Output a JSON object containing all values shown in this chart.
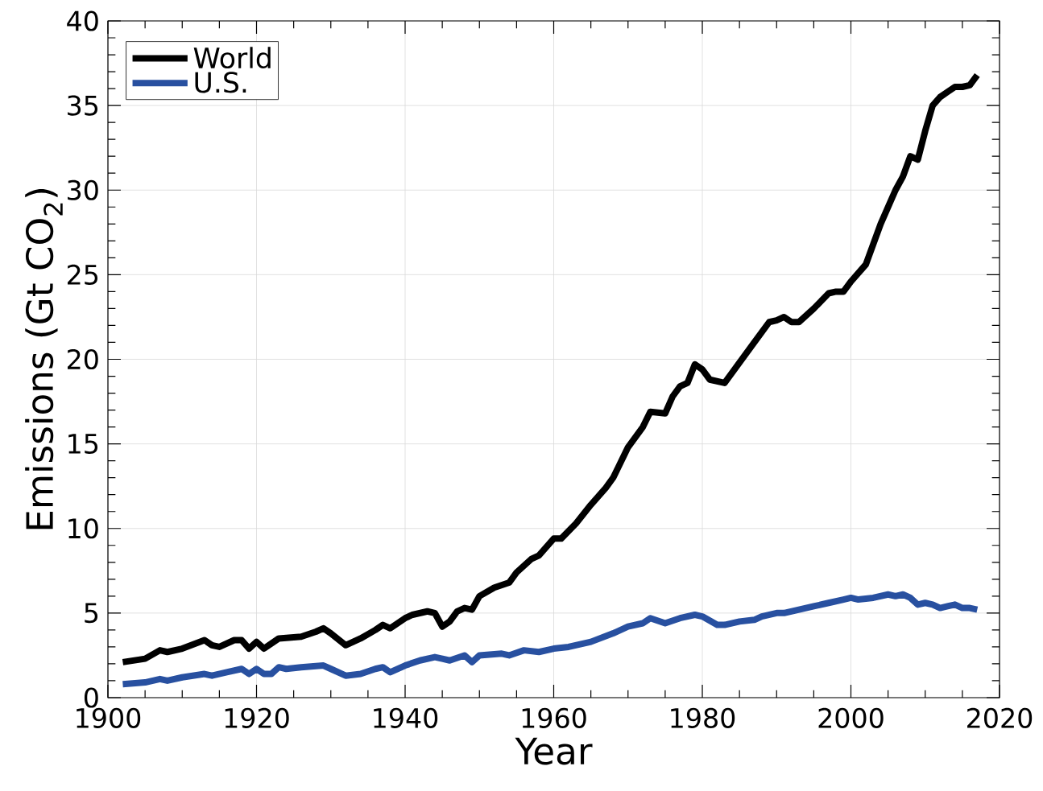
{
  "chart_data": {
    "type": "line",
    "xlabel": "Year",
    "ylabel": "Emissions (Gt CO$_{2}$)",
    "xlim": [
      1900,
      2020
    ],
    "ylim": [
      0,
      40
    ],
    "xticks": [
      1900,
      1920,
      1940,
      1960,
      1980,
      2000,
      2020
    ],
    "yticks": [
      0,
      5,
      10,
      15,
      20,
      25,
      30,
      35,
      40
    ],
    "grid": true,
    "legend": "top left",
    "series": [
      {
        "name": "World",
        "color": "#000000",
        "x": [
          1902,
          1905,
          1907,
          1908,
          1910,
          1913,
          1914,
          1915,
          1917,
          1918,
          1919,
          1920,
          1921,
          1923,
          1926,
          1928,
          1929,
          1930,
          1932,
          1934,
          1936,
          1937,
          1938,
          1940,
          1941,
          1943,
          1944,
          1945,
          1946,
          1947,
          1948,
          1949,
          1950,
          1952,
          1954,
          1955,
          1957,
          1958,
          1960,
          1961,
          1963,
          1965,
          1967,
          1968,
          1970,
          1972,
          1973,
          1975,
          1976,
          1977,
          1978,
          1979,
          1980,
          1981,
          1983,
          1985,
          1987,
          1989,
          1990,
          1991,
          1992,
          1993,
          1995,
          1997,
          1998,
          1999,
          2000,
          2002,
          2003,
          2004,
          2006,
          2007,
          2008,
          2009,
          2010,
          2011,
          2012,
          2013,
          2014,
          2015,
          2016,
          2017
        ],
        "values": [
          2.1,
          2.3,
          2.8,
          2.7,
          2.9,
          3.4,
          3.1,
          3.0,
          3.4,
          3.4,
          2.9,
          3.3,
          2.9,
          3.5,
          3.6,
          3.9,
          4.1,
          3.8,
          3.1,
          3.5,
          4.0,
          4.3,
          4.1,
          4.7,
          4.9,
          5.1,
          5.0,
          4.2,
          4.5,
          5.1,
          5.3,
          5.2,
          6.0,
          6.5,
          6.8,
          7.4,
          8.2,
          8.4,
          9.4,
          9.4,
          10.3,
          11.4,
          12.4,
          13.0,
          14.8,
          16.0,
          16.9,
          16.8,
          17.8,
          18.4,
          18.6,
          19.7,
          19.4,
          18.8,
          18.6,
          19.8,
          21.0,
          22.2,
          22.3,
          22.5,
          22.2,
          22.2,
          23.0,
          23.9,
          24.0,
          24.0,
          24.6,
          25.6,
          26.8,
          28.0,
          30.0,
          30.8,
          32.0,
          31.8,
          33.5,
          35.0,
          35.5,
          35.8,
          36.1,
          36.1,
          36.2,
          36.8
        ]
      },
      {
        "name": "U.S.",
        "color": "#2850a0",
        "x": [
          1902,
          1905,
          1907,
          1908,
          1910,
          1913,
          1914,
          1916,
          1918,
          1919,
          1920,
          1921,
          1922,
          1923,
          1924,
          1926,
          1929,
          1930,
          1932,
          1934,
          1936,
          1937,
          1938,
          1940,
          1942,
          1944,
          1945,
          1946,
          1948,
          1949,
          1950,
          1953,
          1954,
          1956,
          1958,
          1960,
          1962,
          1965,
          1968,
          1970,
          1972,
          1973,
          1975,
          1977,
          1979,
          1980,
          1982,
          1983,
          1985,
          1987,
          1988,
          1990,
          1991,
          1993,
          1995,
          1997,
          1999,
          2000,
          2001,
          2003,
          2005,
          2006,
          2007,
          2008,
          2009,
          2010,
          2011,
          2012,
          2013,
          2014,
          2015,
          2016,
          2017
        ],
        "values": [
          0.8,
          0.9,
          1.1,
          1.0,
          1.2,
          1.4,
          1.3,
          1.5,
          1.7,
          1.4,
          1.7,
          1.4,
          1.4,
          1.8,
          1.7,
          1.8,
          1.9,
          1.7,
          1.3,
          1.4,
          1.7,
          1.8,
          1.5,
          1.9,
          2.2,
          2.4,
          2.3,
          2.2,
          2.5,
          2.1,
          2.5,
          2.6,
          2.5,
          2.8,
          2.7,
          2.9,
          3.0,
          3.3,
          3.8,
          4.2,
          4.4,
          4.7,
          4.4,
          4.7,
          4.9,
          4.8,
          4.3,
          4.3,
          4.5,
          4.6,
          4.8,
          5.0,
          5.0,
          5.2,
          5.4,
          5.6,
          5.8,
          5.9,
          5.8,
          5.9,
          6.1,
          6.0,
          6.1,
          5.9,
          5.5,
          5.6,
          5.5,
          5.3,
          5.4,
          5.5,
          5.3,
          5.3,
          5.2
        ]
      }
    ]
  }
}
